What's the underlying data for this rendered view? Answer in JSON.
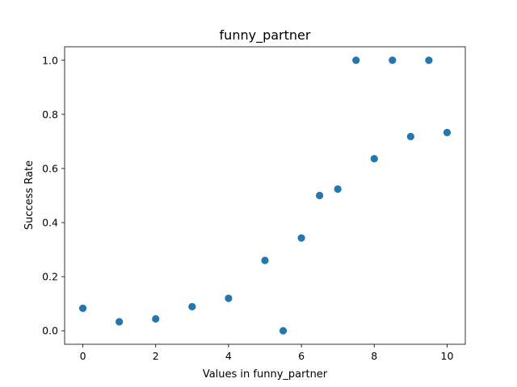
{
  "chart_data": {
    "type": "scatter",
    "title": "funny_partner",
    "xlabel": "Values in funny_partner",
    "ylabel": "Success Rate",
    "xlim": [
      -0.5,
      10.5
    ],
    "ylim": [
      -0.05,
      1.05
    ],
    "xticks": [
      0,
      2,
      4,
      6,
      8,
      10
    ],
    "yticks": [
      0.0,
      0.2,
      0.4,
      0.6,
      0.8,
      1.0
    ],
    "grid": false,
    "color": "#1f77b4",
    "points": [
      {
        "x": 0,
        "y": 0.083
      },
      {
        "x": 1,
        "y": 0.033
      },
      {
        "x": 2,
        "y": 0.044
      },
      {
        "x": 3,
        "y": 0.089
      },
      {
        "x": 4,
        "y": 0.12
      },
      {
        "x": 5,
        "y": 0.26
      },
      {
        "x": 5.5,
        "y": 0.0
      },
      {
        "x": 6,
        "y": 0.343
      },
      {
        "x": 6.5,
        "y": 0.5
      },
      {
        "x": 7,
        "y": 0.524
      },
      {
        "x": 7.5,
        "y": 1.0
      },
      {
        "x": 8,
        "y": 0.636
      },
      {
        "x": 8.5,
        "y": 1.0
      },
      {
        "x": 9,
        "y": 0.718
      },
      {
        "x": 9.5,
        "y": 1.0
      },
      {
        "x": 10,
        "y": 0.733
      }
    ]
  }
}
